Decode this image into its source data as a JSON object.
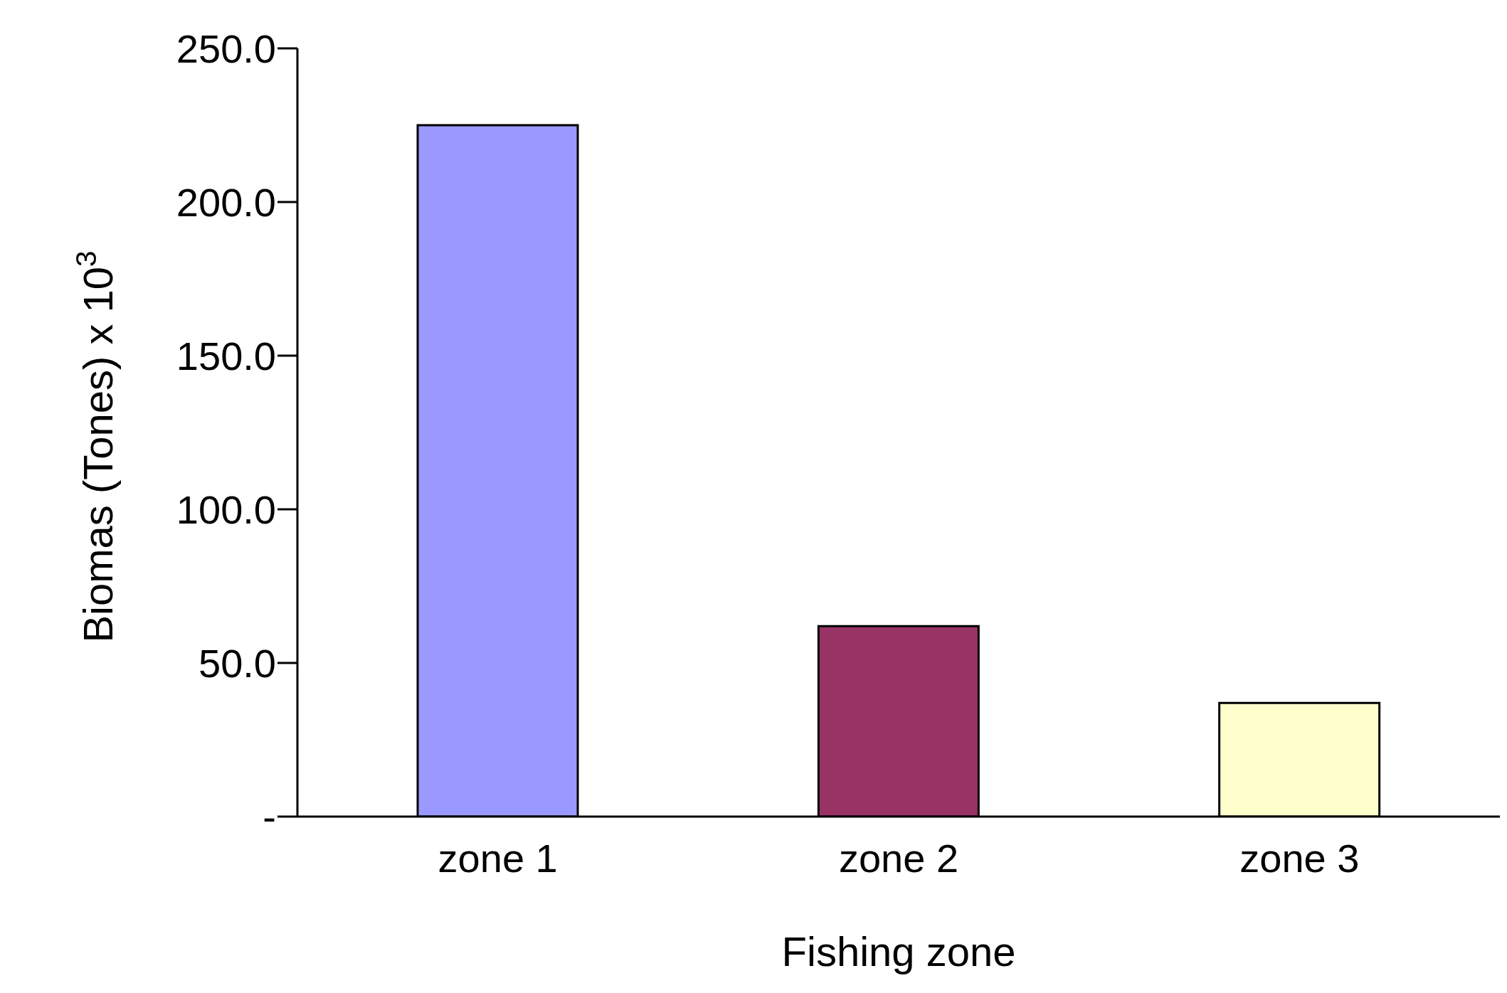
{
  "chart_data": {
    "type": "bar",
    "xlabel": "Fishing zone",
    "ylabel": "Biomas (Tones) x 10$^{3}$",
    "categories": [
      "zone 1",
      "zone 2",
      "zone 3"
    ],
    "values": [
      225,
      62,
      37
    ],
    "colors": [
      "#9999ff",
      "#993366",
      "#ffffcc"
    ],
    "ylim": [
      0,
      250
    ],
    "yticks": [
      {
        "value": 0,
        "label": "-"
      },
      {
        "value": 50,
        "label": "50.0"
      },
      {
        "value": 100,
        "label": "100.0"
      },
      {
        "value": 150,
        "label": "150.0"
      },
      {
        "value": 200,
        "label": "200.0"
      },
      {
        "value": 250,
        "label": "250.0"
      }
    ],
    "grid": false,
    "legend": false
  }
}
